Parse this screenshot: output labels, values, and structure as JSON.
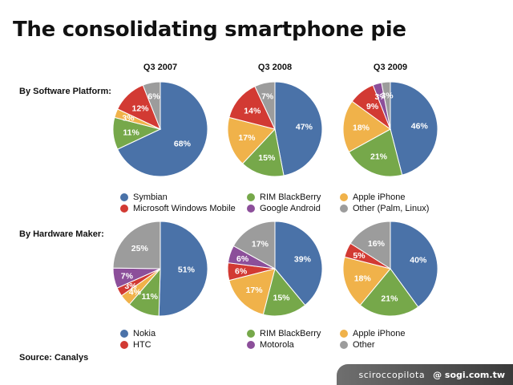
{
  "title": "The consolidating smartphone pie",
  "periods": [
    "Q3 2007",
    "Q3 2008",
    "Q3 2009"
  ],
  "row_labels": {
    "software": "By Software Platform:",
    "hardware": "By Hardware Maker:"
  },
  "source": "Source: Canalys",
  "watermark": {
    "credit": "sciroccopilota",
    "site": "@ sogi.com.tw"
  },
  "colors": {
    "blue": "#4a72a8",
    "green": "#76a84a",
    "orange": "#f0b24a",
    "red": "#d23a33",
    "purple": "#8c4f9a",
    "gray": "#9c9c9c"
  },
  "chart_data": [
    {
      "type": "pie",
      "row": "software",
      "period": "Q3 2007",
      "slices": [
        {
          "name": "Symbian",
          "value": 68,
          "label": "68%",
          "color": "#4a72a8"
        },
        {
          "name": "RIM BlackBerry",
          "value": 11,
          "label": "11%",
          "color": "#76a84a"
        },
        {
          "name": "Apple iPhone",
          "value": 3,
          "label": "3%",
          "color": "#f0b24a"
        },
        {
          "name": "Microsoft Windows Mobile",
          "value": 12,
          "label": "12%",
          "color": "#d23a33"
        },
        {
          "name": "Other (Palm, Linux)",
          "value": 6,
          "label": "6%",
          "color": "#9c9c9c"
        }
      ]
    },
    {
      "type": "pie",
      "row": "software",
      "period": "Q3 2008",
      "slices": [
        {
          "name": "Symbian",
          "value": 47,
          "label": "47%",
          "color": "#4a72a8"
        },
        {
          "name": "RIM BlackBerry",
          "value": 15,
          "label": "15%",
          "color": "#76a84a"
        },
        {
          "name": "Apple iPhone",
          "value": 17,
          "label": "17%",
          "color": "#f0b24a"
        },
        {
          "name": "Microsoft Windows Mobile",
          "value": 14,
          "label": "14%",
          "color": "#d23a33"
        },
        {
          "name": "Other (Palm, Linux)",
          "value": 7,
          "label": "7%",
          "color": "#9c9c9c"
        }
      ]
    },
    {
      "type": "pie",
      "row": "software",
      "period": "Q3 2009",
      "slices": [
        {
          "name": "Symbian",
          "value": 46,
          "label": "46%",
          "color": "#4a72a8"
        },
        {
          "name": "RIM BlackBerry",
          "value": 21,
          "label": "21%",
          "color": "#76a84a"
        },
        {
          "name": "Apple iPhone",
          "value": 18,
          "label": "18%",
          "color": "#f0b24a"
        },
        {
          "name": "Microsoft Windows Mobile",
          "value": 9,
          "label": "9%",
          "color": "#d23a33"
        },
        {
          "name": "Google Android",
          "value": 3,
          "label": "3%",
          "color": "#8c4f9a"
        },
        {
          "name": "Other (Palm, Linux)",
          "value": 3,
          "label": "3%",
          "color": "#9c9c9c"
        }
      ]
    },
    {
      "type": "pie",
      "row": "hardware",
      "period": "Q3 2007",
      "slices": [
        {
          "name": "Nokia",
          "value": 51,
          "label": "51%",
          "color": "#4a72a8"
        },
        {
          "name": "RIM BlackBerry",
          "value": 11,
          "label": "11%",
          "color": "#76a84a"
        },
        {
          "name": "Apple iPhone",
          "value": 4,
          "label": "4%",
          "color": "#f0b24a"
        },
        {
          "name": "HTC",
          "value": 3,
          "label": "3%",
          "color": "#d23a33"
        },
        {
          "name": "Motorola",
          "value": 7,
          "label": "7%",
          "color": "#8c4f9a"
        },
        {
          "name": "Other",
          "value": 25,
          "label": "25%",
          "color": "#9c9c9c"
        }
      ]
    },
    {
      "type": "pie",
      "row": "hardware",
      "period": "Q3 2008",
      "slices": [
        {
          "name": "Nokia",
          "value": 39,
          "label": "39%",
          "color": "#4a72a8"
        },
        {
          "name": "RIM BlackBerry",
          "value": 15,
          "label": "15%",
          "color": "#76a84a"
        },
        {
          "name": "Apple iPhone",
          "value": 17,
          "label": "17%",
          "color": "#f0b24a"
        },
        {
          "name": "HTC",
          "value": 6,
          "label": "6%",
          "color": "#d23a33"
        },
        {
          "name": "Motorola",
          "value": 6,
          "label": "6%",
          "color": "#8c4f9a"
        },
        {
          "name": "Other",
          "value": 17,
          "label": "17%",
          "color": "#9c9c9c"
        }
      ]
    },
    {
      "type": "pie",
      "row": "hardware",
      "period": "Q3 2009",
      "slices": [
        {
          "name": "Nokia",
          "value": 40,
          "label": "40%",
          "color": "#4a72a8"
        },
        {
          "name": "RIM BlackBerry",
          "value": 21,
          "label": "21%",
          "color": "#76a84a"
        },
        {
          "name": "Apple iPhone",
          "value": 18,
          "label": "18%",
          "color": "#f0b24a"
        },
        {
          "name": "HTC",
          "value": 5,
          "label": "5%",
          "color": "#d23a33"
        },
        {
          "name": "Other",
          "value": 16,
          "label": "16%",
          "color": "#9c9c9c"
        }
      ]
    }
  ],
  "legends": {
    "software": [
      {
        "name": "Symbian",
        "color": "#4a72a8"
      },
      {
        "name": "RIM BlackBerry",
        "color": "#76a84a"
      },
      {
        "name": "Apple iPhone",
        "color": "#f0b24a"
      },
      {
        "name": "Microsoft Windows Mobile",
        "color": "#d23a33"
      },
      {
        "name": "Google Android",
        "color": "#8c4f9a"
      },
      {
        "name": "Other (Palm, Linux)",
        "color": "#9c9c9c"
      }
    ],
    "hardware": [
      {
        "name": "Nokia",
        "color": "#4a72a8"
      },
      {
        "name": "RIM BlackBerry",
        "color": "#76a84a"
      },
      {
        "name": "Apple iPhone",
        "color": "#f0b24a"
      },
      {
        "name": "HTC",
        "color": "#d23a33"
      },
      {
        "name": "Motorola",
        "color": "#8c4f9a"
      },
      {
        "name": "Other",
        "color": "#9c9c9c"
      }
    ]
  }
}
